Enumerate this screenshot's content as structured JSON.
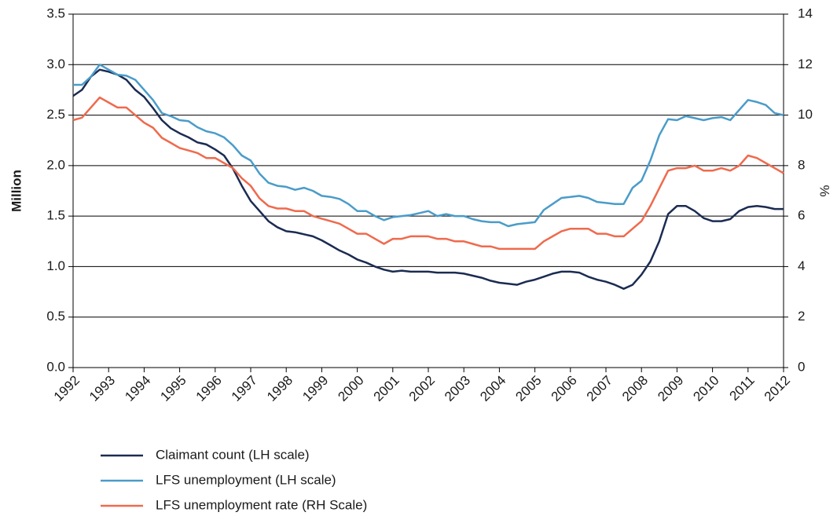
{
  "chart_data": {
    "type": "line",
    "ylabel": "Million",
    "y2label": "%",
    "x": [
      1992,
      1992.25,
      1992.5,
      1992.75,
      1993,
      1993.25,
      1993.5,
      1993.75,
      1994,
      1994.25,
      1994.5,
      1994.75,
      1995,
      1995.25,
      1995.5,
      1995.75,
      1996,
      1996.25,
      1996.5,
      1996.75,
      1997,
      1997.25,
      1997.5,
      1997.75,
      1998,
      1998.25,
      1998.5,
      1998.75,
      1999,
      1999.25,
      1999.5,
      1999.75,
      2000,
      2000.25,
      2000.5,
      2000.75,
      2001,
      2001.25,
      2001.5,
      2001.75,
      2002,
      2002.25,
      2002.5,
      2002.75,
      2003,
      2003.25,
      2003.5,
      2003.75,
      2004,
      2004.25,
      2004.5,
      2004.75,
      2005,
      2005.25,
      2005.5,
      2005.75,
      2006,
      2006.25,
      2006.5,
      2006.75,
      2007,
      2007.25,
      2007.5,
      2007.75,
      2008,
      2008.25,
      2008.5,
      2008.75,
      2009,
      2009.25,
      2009.5,
      2009.75,
      2010,
      2010.25,
      2010.5,
      2010.75,
      2011,
      2011.25,
      2011.5,
      2011.75,
      2012
    ],
    "series": [
      {
        "name": "Claimant count (LH scale)",
        "color": "#1b2b52",
        "axis": "y",
        "values": [
          2.69,
          2.75,
          2.88,
          2.95,
          2.93,
          2.9,
          2.85,
          2.75,
          2.68,
          2.57,
          2.45,
          2.37,
          2.32,
          2.28,
          2.23,
          2.21,
          2.16,
          2.1,
          1.97,
          1.8,
          1.65,
          1.55,
          1.45,
          1.39,
          1.35,
          1.34,
          1.32,
          1.3,
          1.26,
          1.21,
          1.16,
          1.12,
          1.07,
          1.04,
          1.0,
          0.97,
          0.95,
          0.96,
          0.95,
          0.95,
          0.95,
          0.94,
          0.94,
          0.94,
          0.93,
          0.91,
          0.89,
          0.86,
          0.84,
          0.83,
          0.82,
          0.85,
          0.87,
          0.9,
          0.93,
          0.95,
          0.95,
          0.94,
          0.9,
          0.87,
          0.85,
          0.82,
          0.78,
          0.82,
          0.92,
          1.05,
          1.25,
          1.52,
          1.6,
          1.6,
          1.55,
          1.48,
          1.45,
          1.45,
          1.47,
          1.55,
          1.59,
          1.6,
          1.59,
          1.57,
          1.57
        ]
      },
      {
        "name": "LFS unemployment (LH scale)",
        "color": "#4a9cc9",
        "axis": "y",
        "values": [
          2.8,
          2.8,
          2.88,
          3.0,
          2.95,
          2.9,
          2.89,
          2.85,
          2.75,
          2.65,
          2.52,
          2.49,
          2.45,
          2.44,
          2.38,
          2.34,
          2.32,
          2.28,
          2.2,
          2.1,
          2.05,
          1.92,
          1.83,
          1.8,
          1.79,
          1.76,
          1.78,
          1.75,
          1.7,
          1.69,
          1.67,
          1.62,
          1.55,
          1.55,
          1.5,
          1.46,
          1.49,
          1.5,
          1.51,
          1.53,
          1.55,
          1.5,
          1.52,
          1.5,
          1.5,
          1.47,
          1.45,
          1.44,
          1.44,
          1.4,
          1.42,
          1.43,
          1.44,
          1.56,
          1.62,
          1.68,
          1.69,
          1.7,
          1.68,
          1.64,
          1.63,
          1.62,
          1.62,
          1.78,
          1.85,
          2.05,
          2.3,
          2.46,
          2.45,
          2.49,
          2.47,
          2.45,
          2.47,
          2.48,
          2.45,
          2.55,
          2.65,
          2.63,
          2.6,
          2.52,
          2.5
        ]
      },
      {
        "name": "LFS unemployment rate (RH Scale)",
        "color": "#ef6a4d",
        "axis": "y2",
        "values": [
          9.8,
          9.9,
          10.3,
          10.7,
          10.5,
          10.3,
          10.3,
          10.0,
          9.7,
          9.5,
          9.1,
          8.9,
          8.7,
          8.6,
          8.5,
          8.3,
          8.3,
          8.1,
          7.9,
          7.5,
          7.2,
          6.7,
          6.4,
          6.3,
          6.3,
          6.2,
          6.2,
          6.0,
          5.9,
          5.8,
          5.7,
          5.5,
          5.3,
          5.3,
          5.1,
          4.9,
          5.1,
          5.1,
          5.2,
          5.2,
          5.2,
          5.1,
          5.1,
          5.0,
          5.0,
          4.9,
          4.8,
          4.8,
          4.7,
          4.7,
          4.7,
          4.7,
          4.7,
          5.0,
          5.2,
          5.4,
          5.5,
          5.5,
          5.5,
          5.3,
          5.3,
          5.2,
          5.2,
          5.5,
          5.8,
          6.4,
          7.1,
          7.8,
          7.9,
          7.9,
          8.0,
          7.8,
          7.8,
          7.9,
          7.8,
          8.0,
          8.4,
          8.3,
          8.1,
          7.9,
          7.7
        ]
      }
    ],
    "xlim": [
      1992,
      2012
    ],
    "xticks": [
      1992,
      1993,
      1994,
      1995,
      1996,
      1997,
      1998,
      1999,
      2000,
      2001,
      2002,
      2003,
      2004,
      2005,
      2006,
      2007,
      2008,
      2009,
      2010,
      2011,
      2012
    ],
    "ylim": [
      0,
      3.5
    ],
    "yticks": [
      {
        "value": 0,
        "label": "0.0"
      },
      0.5,
      {
        "value": 1,
        "label": "1.0"
      },
      1.5,
      {
        "value": 2,
        "label": "2.0"
      },
      2.5,
      {
        "value": 3,
        "label": "3.0"
      },
      3.5
    ],
    "y2lim": [
      0,
      14
    ],
    "y2ticks": [
      0,
      2,
      4,
      6,
      8,
      10,
      12,
      14
    ],
    "grid": true
  }
}
